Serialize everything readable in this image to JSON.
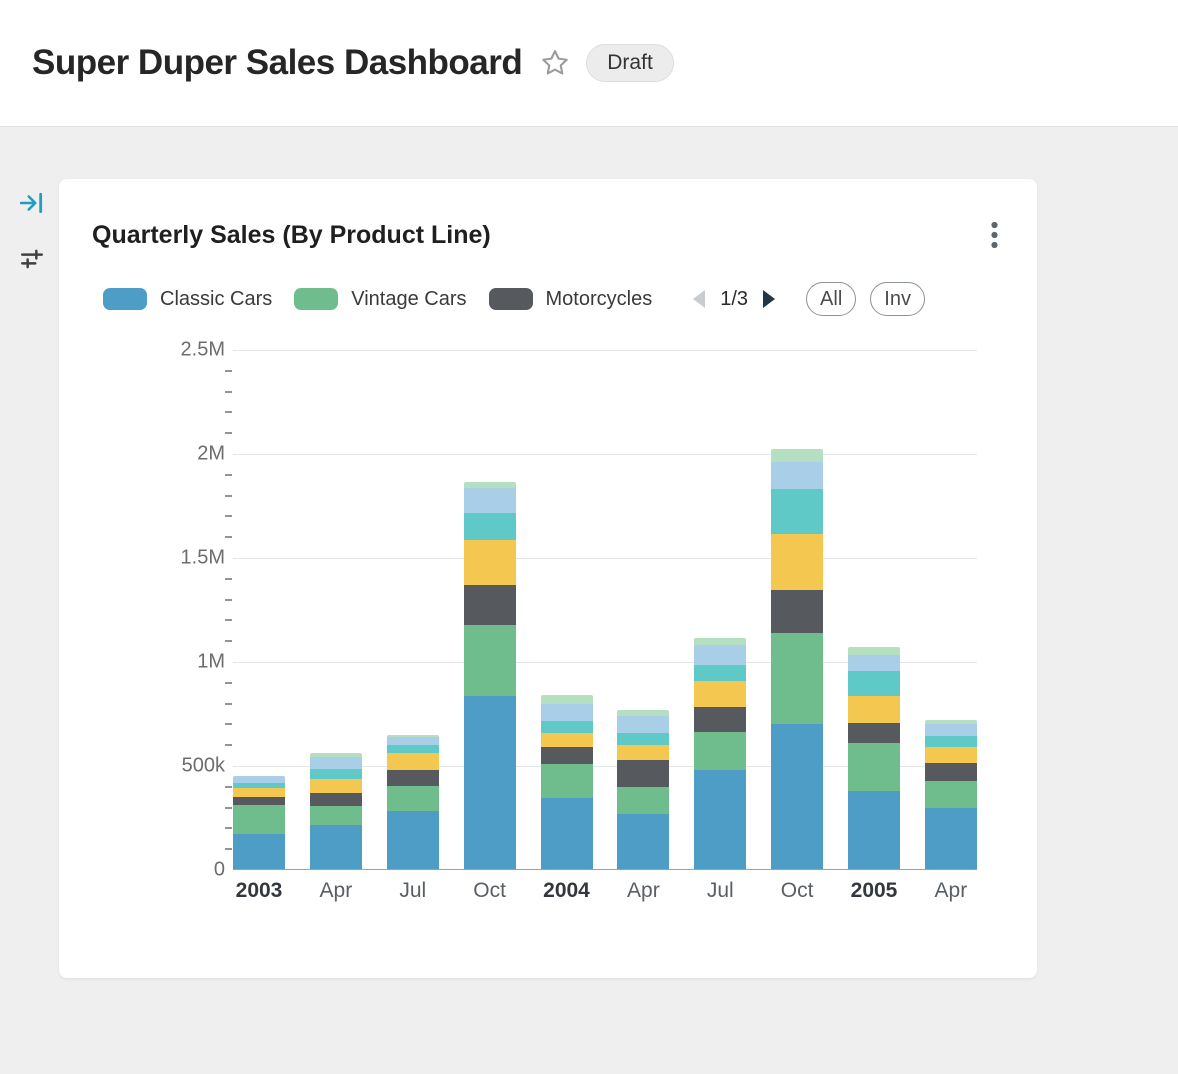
{
  "header": {
    "title": "Super Duper Sales Dashboard",
    "badge": "Draft",
    "star_icon": "star-outline-icon"
  },
  "sidebar": {
    "icons": [
      "collapse-panel-icon",
      "filter-icon"
    ]
  },
  "card": {
    "title": "Quarterly Sales (By Product Line)",
    "menu_icon": "kebab-menu-icon",
    "legend_pagination": {
      "current": "1/3",
      "prev_icon": "left-arrow-icon",
      "next_icon": "right-arrow-icon"
    },
    "buttons": [
      {
        "label": "All"
      },
      {
        "label": "Inv"
      }
    ]
  },
  "chart_data": {
    "type": "bar",
    "stacked": true,
    "title": "Quarterly Sales (By Product Line)",
    "categories": [
      {
        "label": "2003",
        "bold": true
      },
      {
        "label": "Apr",
        "bold": false
      },
      {
        "label": "Jul",
        "bold": false
      },
      {
        "label": "Oct",
        "bold": false
      },
      {
        "label": "2004",
        "bold": true
      },
      {
        "label": "Apr",
        "bold": false
      },
      {
        "label": "Jul",
        "bold": false
      },
      {
        "label": "Oct",
        "bold": false
      },
      {
        "label": "2005",
        "bold": true
      },
      {
        "label": "Apr",
        "bold": false
      }
    ],
    "y_ticks": [
      {
        "label": "0",
        "value": 0
      },
      {
        "label": "500k",
        "value": 500000
      },
      {
        "label": "1M",
        "value": 1000000
      },
      {
        "label": "1.5M",
        "value": 1500000
      },
      {
        "label": "2M",
        "value": 2000000
      },
      {
        "label": "2.5M",
        "value": 2500000
      }
    ],
    "ylim": [
      0,
      2500000
    ],
    "minor_tick_step": 100000,
    "legend_position": "top",
    "grid": true,
    "series": [
      {
        "name": "Classic Cars",
        "color": "#4d9dc7",
        "in_legend": true,
        "values": [
          170000,
          210000,
          280000,
          830000,
          340000,
          265000,
          475000,
          695000,
          375000,
          295000
        ]
      },
      {
        "name": "Vintage Cars",
        "color": "#6fbd8d",
        "in_legend": true,
        "values": [
          140000,
          95000,
          120000,
          345000,
          165000,
          130000,
          185000,
          440000,
          230000,
          130000
        ]
      },
      {
        "name": "Motorcycles",
        "color": "#56595e",
        "in_legend": true,
        "values": [
          35000,
          60000,
          75000,
          190000,
          80000,
          130000,
          120000,
          205000,
          95000,
          85000
        ]
      },
      {
        "name": "",
        "color": "#f4c751",
        "in_legend": false,
        "values": [
          45000,
          70000,
          85000,
          215000,
          70000,
          70000,
          125000,
          270000,
          130000,
          75000
        ]
      },
      {
        "name": "",
        "color": "#5ec9c6",
        "in_legend": false,
        "values": [
          25000,
          45000,
          35000,
          130000,
          55000,
          60000,
          75000,
          215000,
          120000,
          55000
        ]
      },
      {
        "name": "",
        "color": "#a9cee8",
        "in_legend": false,
        "values": [
          30000,
          60000,
          40000,
          120000,
          85000,
          80000,
          95000,
          130000,
          80000,
          55000
        ]
      },
      {
        "name": "",
        "color": "#b5dfc1",
        "in_legend": false,
        "values": [
          0,
          20000,
          10000,
          30000,
          40000,
          30000,
          35000,
          65000,
          40000,
          20000
        ]
      }
    ]
  }
}
